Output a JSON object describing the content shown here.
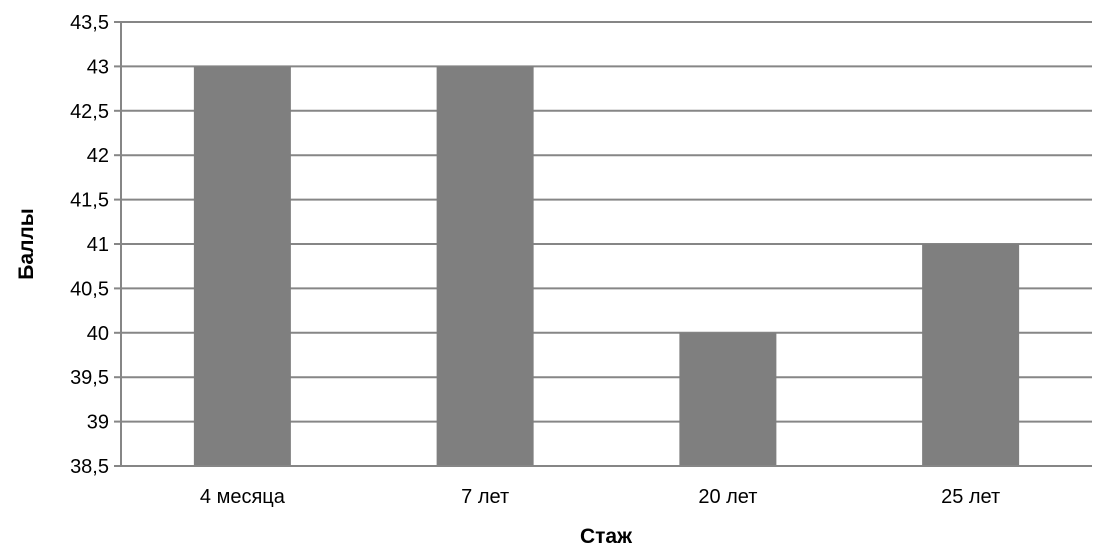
{
  "chart_data": {
    "type": "bar",
    "title": "",
    "xlabel": "Стаж",
    "ylabel": "Баллы",
    "categories": [
      "4 месяца",
      "7 лет",
      "20 лет",
      "25 лет"
    ],
    "series": [
      {
        "values": [
          43,
          43,
          40,
          41
        ]
      }
    ],
    "ylim": [
      38.5,
      43.5
    ],
    "y_ticks": [
      "38,5",
      "39",
      "39,5",
      "40",
      "40,5",
      "41",
      "41,5",
      "42",
      "42,5",
      "43",
      "43,5"
    ],
    "grid": true,
    "legend": "none",
    "colors": {
      "bar": "#7f7f7f",
      "grid": "#868686"
    }
  }
}
